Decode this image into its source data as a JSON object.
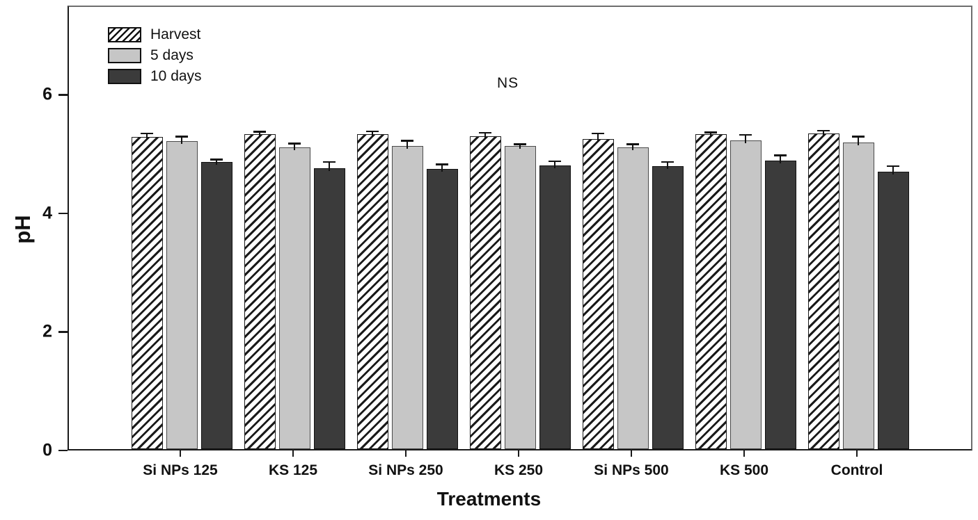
{
  "chart_data": {
    "type": "bar",
    "title": "",
    "xlabel": "Treatments",
    "ylabel": "pH",
    "annotation": "NS",
    "categories": [
      "Si NPs 125",
      "KS 125",
      "Si NPs 250",
      "KS 250",
      "Si NPs 500",
      "KS 500",
      "Control"
    ],
    "series": [
      {
        "name": "Harvest",
        "style": "hatch",
        "values": [
          5.27,
          5.31,
          5.31,
          5.28,
          5.23,
          5.31,
          5.32
        ],
        "errors": [
          0.04,
          0.03,
          0.04,
          0.04,
          0.08,
          0.02,
          0.04
        ]
      },
      {
        "name": "5 days",
        "style": "light",
        "values": [
          5.2,
          5.09,
          5.12,
          5.11,
          5.09,
          5.21,
          5.17
        ],
        "errors": [
          0.06,
          0.05,
          0.07,
          0.02,
          0.04,
          0.08,
          0.09
        ]
      },
      {
        "name": "10 days",
        "style": "dark",
        "values": [
          4.85,
          4.74,
          4.73,
          4.79,
          4.77,
          4.87,
          4.68
        ],
        "errors": [
          0.02,
          0.09,
          0.06,
          0.05,
          0.06,
          0.07,
          0.08
        ]
      }
    ],
    "yticks": [
      0,
      2,
      4,
      6
    ],
    "ylim": [
      0,
      7.46
    ],
    "grid": false,
    "legend_position": "top-left",
    "error_bars": "upper",
    "colors": {
      "light_fill": "#c6c6c6",
      "dark_fill": "#3b3b3b",
      "hatch_fg": "#1a1a1a",
      "hatch_bg": "#ffffff",
      "axis": "#1a1a1a"
    }
  }
}
